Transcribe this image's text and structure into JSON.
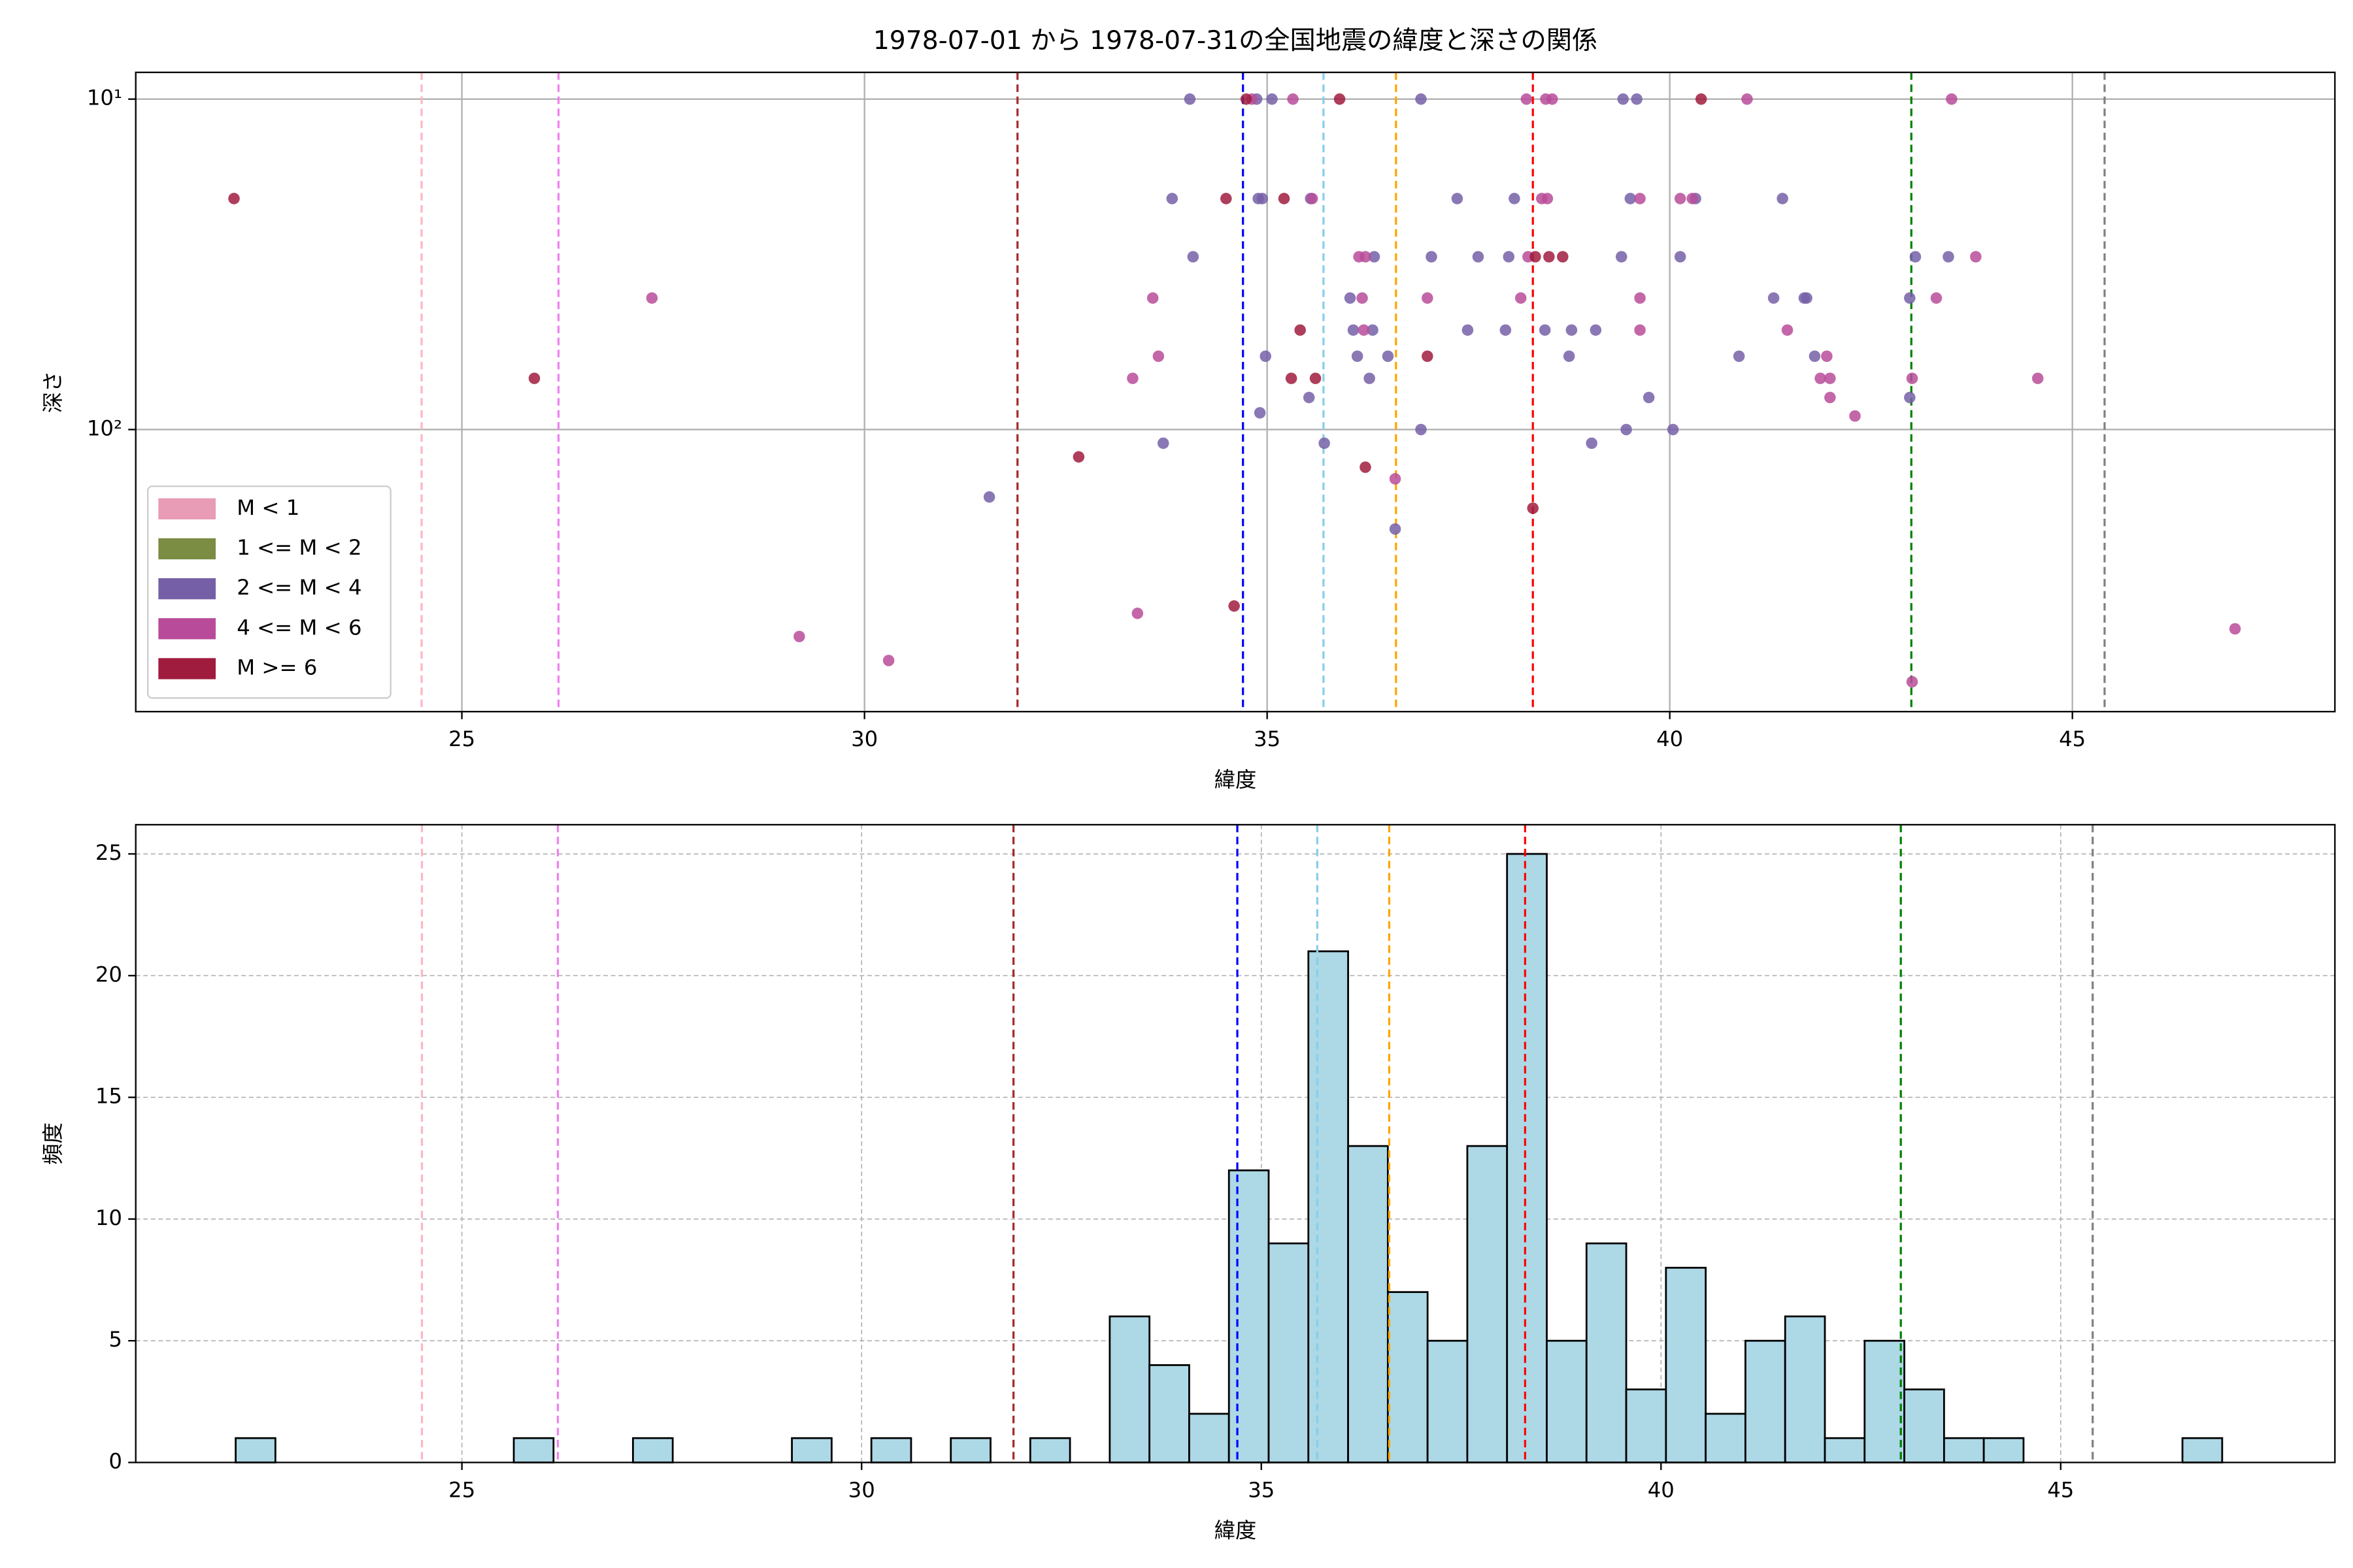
{
  "chart_data": [
    {
      "type": "scatter",
      "title": "1978-07-01 から 1978-07-31の全国地震の緯度と深さの関係",
      "xlabel": "緯度",
      "ylabel": "深さ",
      "xlim": [
        20.95,
        48.26
      ],
      "xticks": [
        25,
        30,
        35,
        40,
        45
      ],
      "ylim": [
        8.3,
        714
      ],
      "yscale": "log",
      "y_inverted": true,
      "yticks": [
        {
          "value": 10,
          "label": "10¹"
        },
        {
          "value": 100,
          "label": "10²"
        }
      ],
      "grid": true,
      "legend": "lower left",
      "vlines": [
        {
          "x": 24.5,
          "color": "#ffb6c1"
        },
        {
          "x": 26.2,
          "color": "#ee82ee"
        },
        {
          "x": 31.9,
          "color": "#a52a2a"
        },
        {
          "x": 34.7,
          "color": "#0000ff"
        },
        {
          "x": 35.7,
          "color": "#87ceeb"
        },
        {
          "x": 36.6,
          "color": "#ffa500"
        },
        {
          "x": 38.3,
          "color": "#ff0000"
        },
        {
          "x": 43.0,
          "color": "#008000"
        },
        {
          "x": 45.4,
          "color": "#808080"
        }
      ],
      "series": [
        {
          "name": "M < 1",
          "color": "#e89cb6",
          "x": [],
          "values": []
        },
        {
          "name": "1 <= M < 2",
          "color": "#7b8c43",
          "x": [],
          "values": []
        },
        {
          "name": "2 <= M < 4",
          "color": "#7560a8",
          "x": [
            34.04,
            33.82,
            34.08,
            33.71,
            31.55,
            34.87,
            35.06,
            34.89,
            34.94,
            35.54,
            34.98,
            34.91,
            35.52,
            35.71,
            36.03,
            36.07,
            36.12,
            36.33,
            36.31,
            36.27,
            36.5,
            36.91,
            36.91,
            36.59,
            37.04,
            37.36,
            37.62,
            37.49,
            37.96,
            38.07,
            38.0,
            38.45,
            38.78,
            38.75,
            39.08,
            39.42,
            39.59,
            39.4,
            39.51,
            39.46,
            39.03,
            39.74,
            40.04,
            40.13,
            40.32,
            40.86,
            41.29,
            41.4,
            41.67,
            41.8,
            41.7,
            42.98,
            42.98,
            43.05,
            43.46
          ],
          "values": [
            10,
            20,
            30,
            110,
            160,
            10,
            10,
            20,
            20,
            20,
            60,
            89,
            80,
            110,
            40,
            50,
            60,
            30,
            50,
            70,
            60,
            10,
            100,
            200,
            30,
            20,
            30,
            50,
            50,
            20,
            30,
            50,
            50,
            60,
            50,
            10,
            10,
            30,
            20,
            100,
            110,
            80,
            100,
            30,
            20,
            60,
            40,
            20,
            40,
            60,
            40,
            40,
            80,
            30,
            30
          ]
        },
        {
          "name": "4 <= M < 6",
          "color": "#b84c9a",
          "x": [
            27.36,
            29.19,
            30.3,
            33.33,
            33.39,
            33.58,
            33.65,
            34.81,
            35.32,
            35.56,
            36.14,
            36.22,
            36.18,
            36.2,
            36.59,
            36.99,
            38.22,
            38.46,
            38.54,
            38.41,
            38.48,
            38.15,
            38.24,
            39.63,
            39.63,
            39.63,
            40.13,
            40.28,
            40.96,
            41.46,
            41.95,
            41.87,
            41.99,
            41.99,
            42.3,
            43.01,
            43.31,
            43.5,
            43.8,
            44.57,
            47.02,
            43.01
          ],
          "values": [
            40,
            423,
            500,
            70,
            360,
            40,
            60,
            10,
            10,
            20,
            30,
            30,
            40,
            50,
            141,
            40,
            10,
            10,
            10,
            20,
            20,
            40,
            30,
            20,
            40,
            50,
            20,
            20,
            10,
            50,
            60,
            70,
            70,
            80,
            91,
            70,
            40,
            10,
            30,
            70,
            401,
            580
          ]
        },
        {
          "name": "M >= 6",
          "color": "#a01c3e",
          "x": [
            22.17,
            25.9,
            32.66,
            34.49,
            34.74,
            35.21,
            35.41,
            35.3,
            35.6,
            35.9,
            36.22,
            36.99,
            38.3,
            34.59,
            40.39,
            38.33,
            38.5,
            38.67
          ],
          "values": [
            20,
            70,
            121,
            20,
            10,
            20,
            50,
            70,
            70,
            10,
            130,
            60,
            173,
            342,
            10,
            30,
            30,
            30
          ]
        }
      ]
    },
    {
      "type": "histogram",
      "xlabel": "緯度",
      "ylabel": "頻度",
      "xlim": [
        20.92,
        48.43
      ],
      "xticks": [
        25,
        30,
        35,
        40,
        45
      ],
      "ylim": [
        0,
        26.2
      ],
      "yticks": [
        0,
        5,
        10,
        15,
        20,
        25
      ],
      "grid": true,
      "color": "#add8e6",
      "edgecolor": "#000000",
      "vlines": [
        {
          "x": 24.5,
          "color": "#ffb6c1"
        },
        {
          "x": 26.2,
          "color": "#ee82ee"
        },
        {
          "x": 31.9,
          "color": "#a52a2a"
        },
        {
          "x": 34.7,
          "color": "#0000ff"
        },
        {
          "x": 35.7,
          "color": "#87ceeb"
        },
        {
          "x": 36.6,
          "color": "#ffa500"
        },
        {
          "x": 38.3,
          "color": "#ff0000"
        },
        {
          "x": 43.0,
          "color": "#008000"
        },
        {
          "x": 45.4,
          "color": "#808080"
        }
      ],
      "bins": [
        22.17,
        22.667,
        23.164,
        23.661,
        24.158,
        24.655,
        25.152,
        25.649,
        26.146,
        26.643,
        27.14,
        27.637,
        28.134,
        28.631,
        29.128,
        29.625,
        30.122,
        30.619,
        31.116,
        31.613,
        32.11,
        32.607,
        33.104,
        33.601,
        34.098,
        34.595,
        35.092,
        35.589,
        36.086,
        36.583,
        37.08,
        37.577,
        38.074,
        38.571,
        39.068,
        39.565,
        40.062,
        40.559,
        41.056,
        41.553,
        42.05,
        42.547,
        43.044,
        43.541,
        44.038,
        44.535,
        45.032,
        45.529,
        46.026,
        46.523,
        47.02
      ],
      "values": [
        1,
        0,
        0,
        0,
        0,
        0,
        0,
        1,
        0,
        0,
        1,
        0,
        0,
        0,
        1,
        0,
        1,
        0,
        1,
        0,
        1,
        0,
        6,
        4,
        2,
        12,
        9,
        21,
        13,
        7,
        5,
        13,
        25,
        5,
        9,
        3,
        8,
        2,
        5,
        6,
        1,
        5,
        3,
        1,
        1,
        0,
        0,
        0,
        0,
        1
      ]
    }
  ]
}
